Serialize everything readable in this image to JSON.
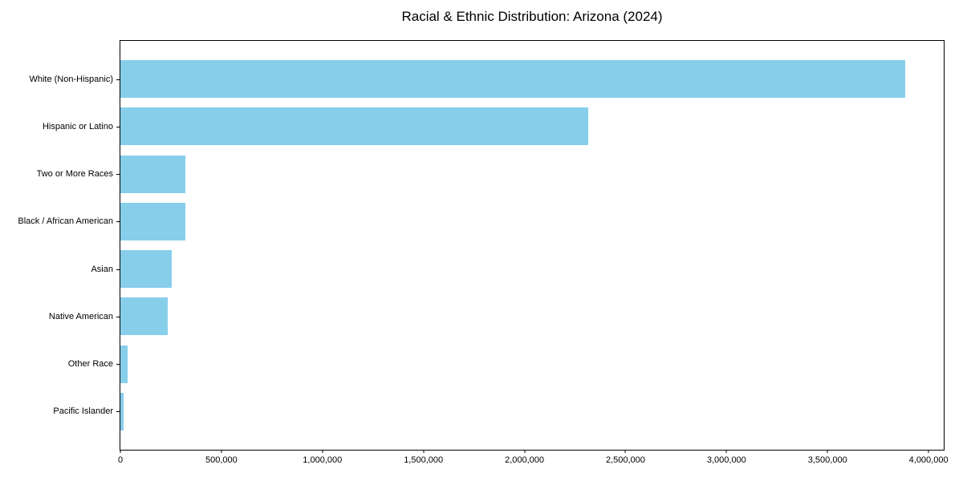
{
  "chart_data": {
    "type": "bar",
    "orientation": "horizontal",
    "title": "Racial & Ethnic Distribution: Arizona (2024)",
    "categories": [
      "White (Non-Hispanic)",
      "Hispanic or Latino",
      "Two or More Races",
      "Black / African American",
      "Asian",
      "Native American",
      "Other Race",
      "Pacific Islander"
    ],
    "values": [
      3885000,
      2315000,
      320000,
      323000,
      253000,
      234000,
      37000,
      15000
    ],
    "xlabel": "",
    "ylabel": "",
    "xlim": [
      0,
      4075000
    ],
    "x_ticks": [
      0,
      500000,
      1000000,
      1500000,
      2000000,
      2500000,
      3000000,
      3500000,
      4000000
    ],
    "x_tick_labels": [
      "0",
      "500,000",
      "1,000,000",
      "1,500,000",
      "2,000,000",
      "2,500,000",
      "3,000,000",
      "3,500,000",
      "4,000,000"
    ],
    "bar_color": "#87CEEB",
    "axis_color": "#000000",
    "grid": false,
    "legend": false
  }
}
